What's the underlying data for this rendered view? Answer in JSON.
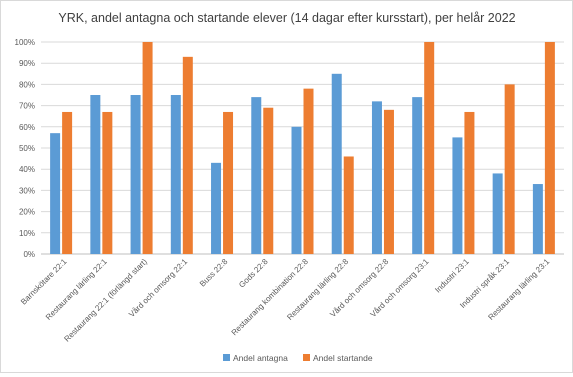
{
  "chart_data": {
    "type": "bar",
    "title": "YRK, andel antagna och startande elever (14 dagar efter kursstart), per helår 2022",
    "categories": [
      "Barnskötare 22:1",
      "Restaurang lärling 22:1",
      "Restaurang 22:1 (förlängd start)",
      "Vård och omsorg 22:1",
      "Buss 22:8",
      "Gods 22:8",
      "Restaurang kombination 22:8",
      "Restaurang lärling 22:8",
      "Vård och omsorg 22:8",
      "Vård och omsorg 23:1",
      "Industri 23:1",
      "Industri språk 23:1",
      "Restaurang lärling 23:1"
    ],
    "series": [
      {
        "name": "Andel antagna",
        "color": "#5B9BD5",
        "values": [
          57,
          75,
          75,
          75,
          43,
          74,
          60,
          85,
          72,
          74,
          55,
          38,
          33
        ]
      },
      {
        "name": "Andel startande",
        "color": "#ED7D31",
        "values": [
          67,
          67,
          100,
          93,
          67,
          69,
          78,
          46,
          68,
          100,
          67,
          80,
          100
        ]
      }
    ],
    "y_ticks": [
      "0%",
      "10%",
      "20%",
      "30%",
      "40%",
      "50%",
      "60%",
      "70%",
      "80%",
      "90%",
      "100%"
    ],
    "ylim": [
      0,
      100
    ],
    "grid": true,
    "legend_position": "bottom"
  }
}
